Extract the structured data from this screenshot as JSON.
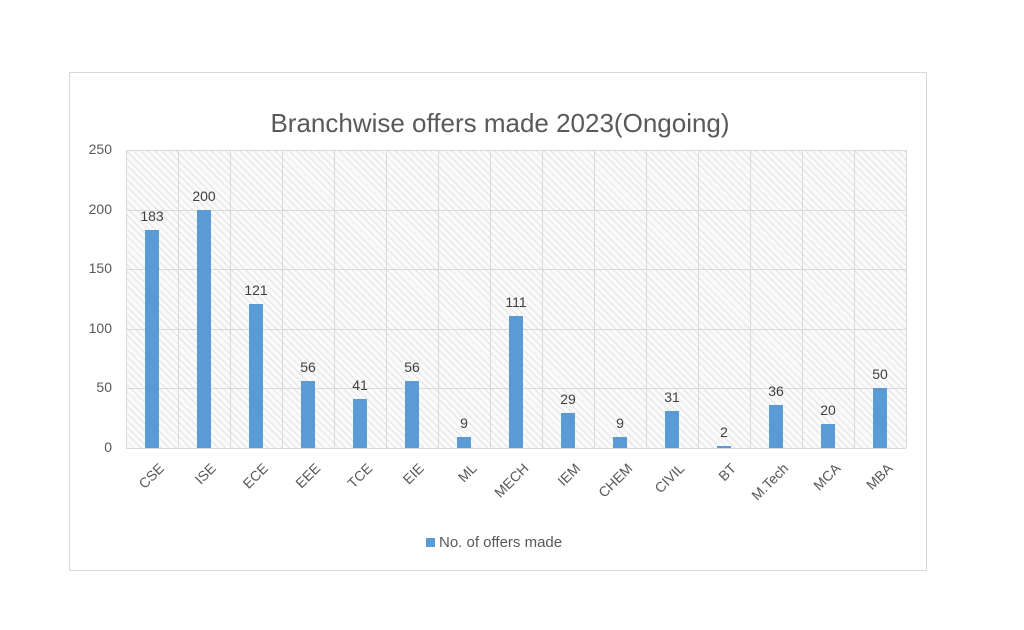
{
  "chart_data": {
    "type": "bar",
    "title": "Branchwise offers made 2023(Ongoing)",
    "xlabel": "",
    "ylabel": "",
    "ylim": [
      0,
      250
    ],
    "yticks": [
      0,
      50,
      100,
      150,
      200,
      250
    ],
    "grid": true,
    "legend_position": "bottom",
    "categories": [
      "CSE",
      "ISE",
      "ECE",
      "EEE",
      "TCE",
      "EIE",
      "ML",
      "MECH",
      "IEM",
      "CHEM",
      "CIVIL",
      "BT",
      "M.Tech",
      "MCA",
      "MBA"
    ],
    "series": [
      {
        "name": "No. of offers made",
        "color": "#5b9bd5",
        "values": [
          183,
          200,
          121,
          56,
          41,
          56,
          9,
          111,
          29,
          9,
          31,
          2,
          36,
          20,
          50
        ]
      }
    ]
  },
  "title": "Branchwise offers made 2023(Ongoing)",
  "legend": {
    "label": "No. of offers made"
  }
}
